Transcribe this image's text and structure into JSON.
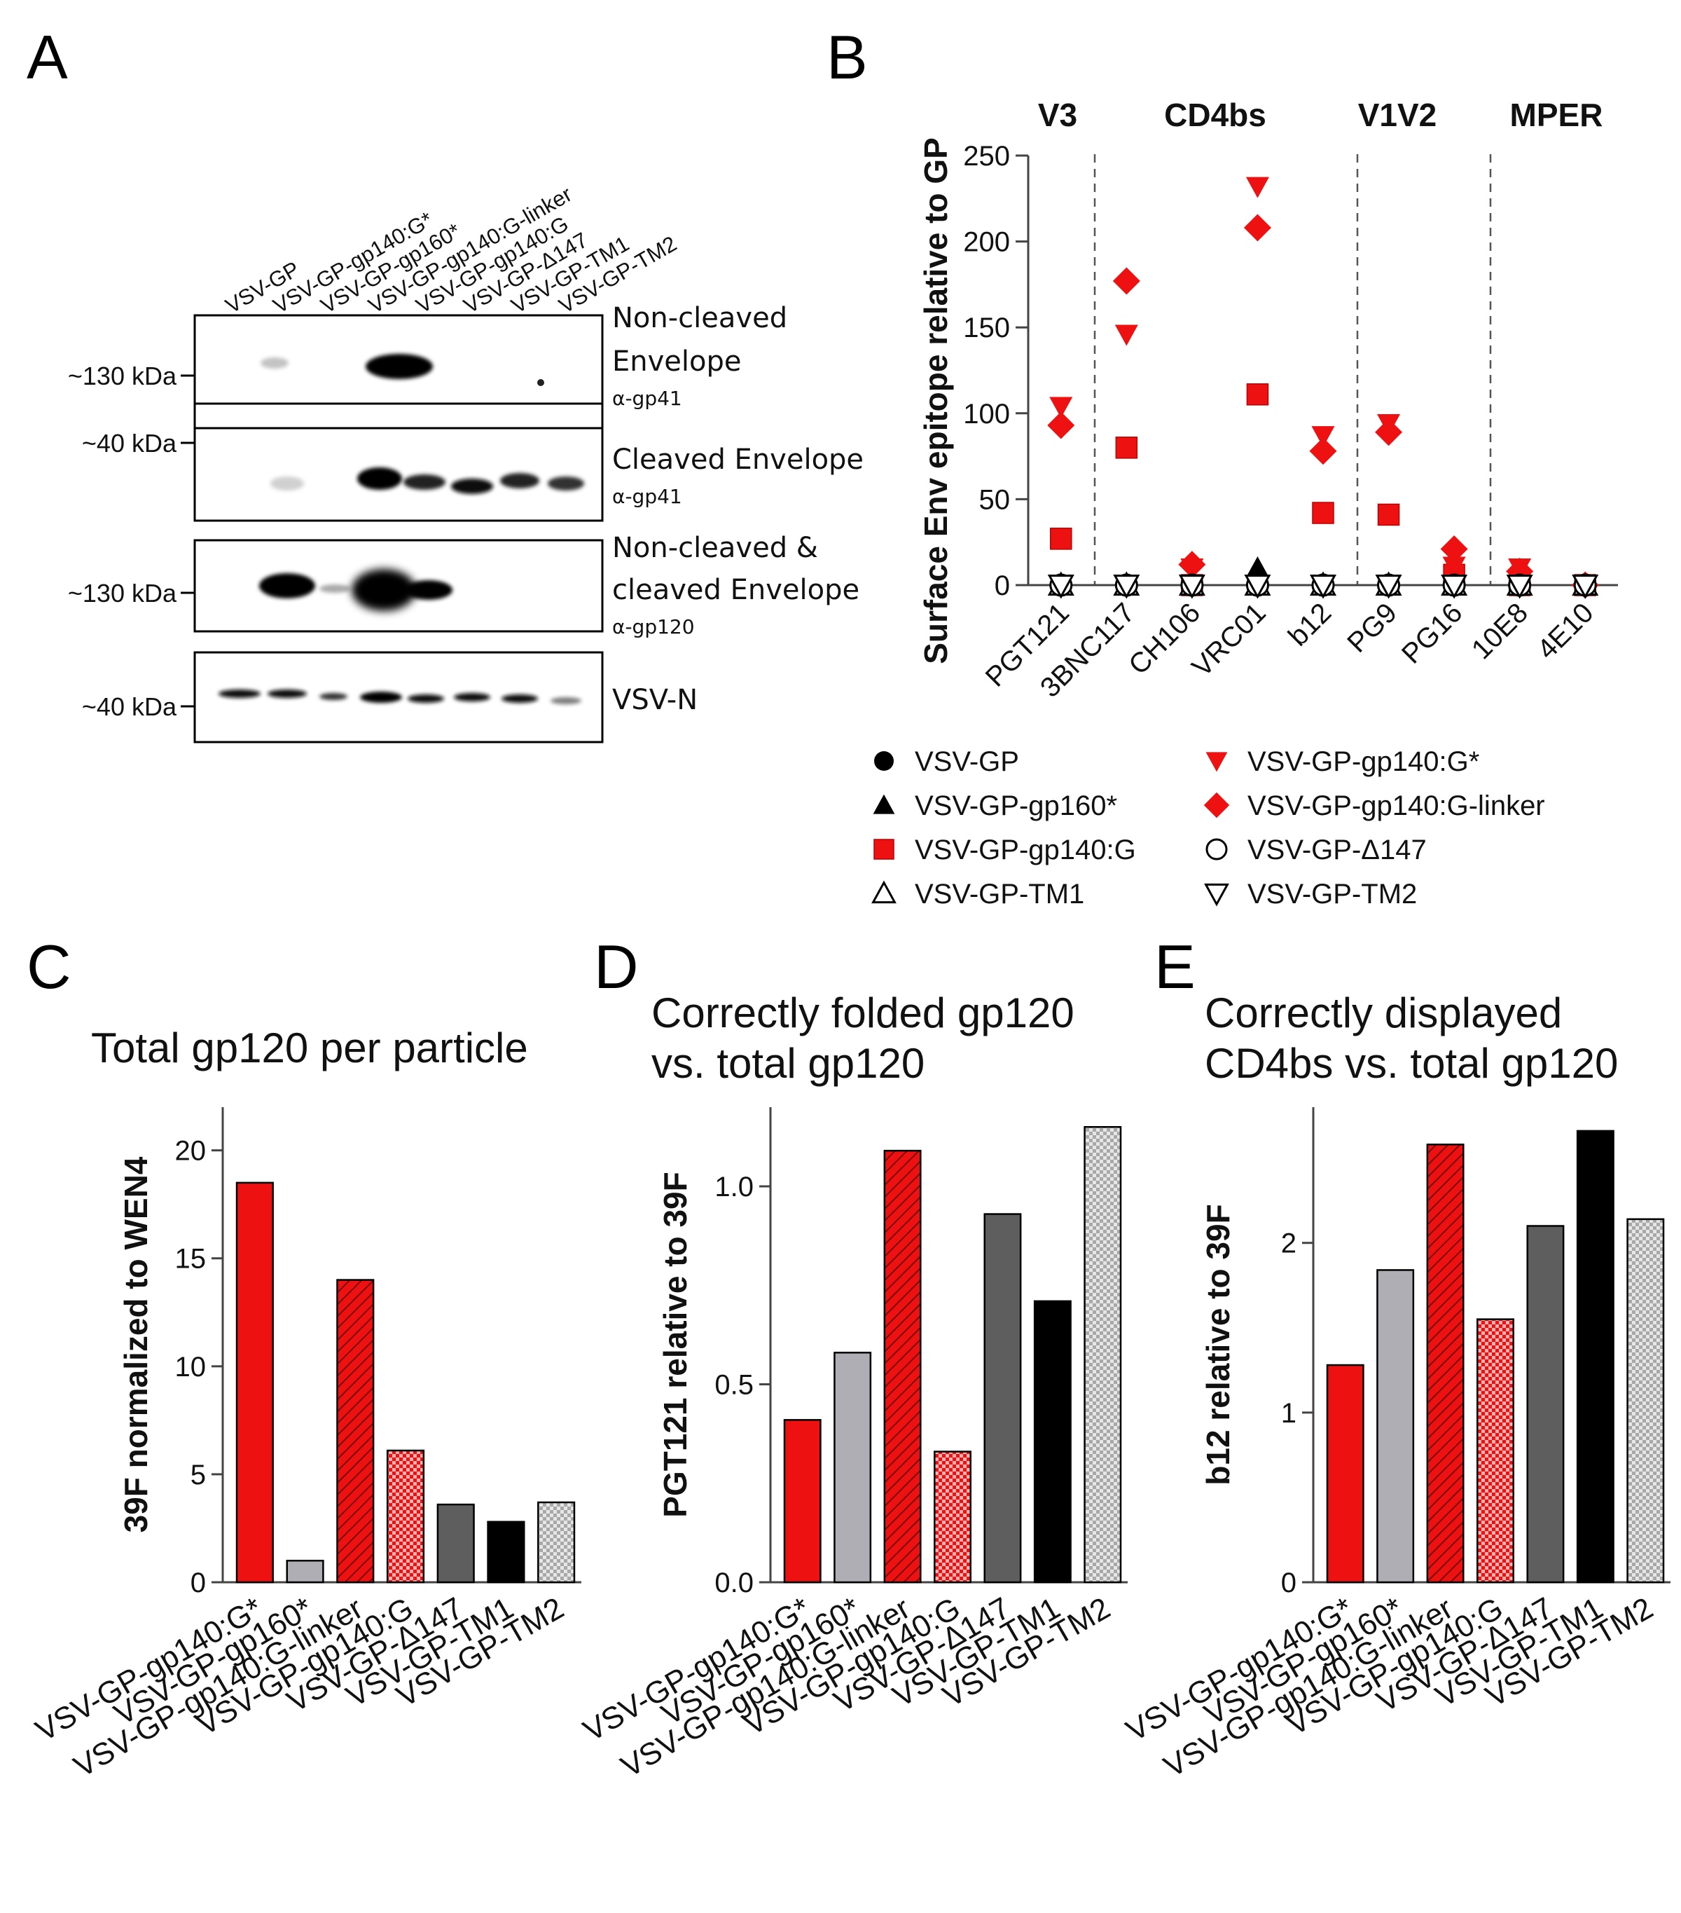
{
  "panels": {
    "a": "A",
    "b": "B",
    "c": "C",
    "d": "D",
    "e": "E"
  },
  "colors": {
    "red": "#ee1111",
    "light_gray": "#aeaeb4",
    "dark_gray": "#5e5e5e",
    "black": "#000000",
    "check_gray": "#c8c8c8"
  },
  "western_blot": {
    "lanes": [
      "VSV-GP",
      "VSV-GP-gp140:G*",
      "VSV-GP-gp160*",
      "VSV-GP-gp140:G-linker",
      "VSV-GP-gp140:G",
      "VSV-GP-Δ147",
      "VSV-GP-TM1",
      "VSV-GP-TM2"
    ],
    "blots": [
      {
        "title_lines": [
          "Non-cleaved",
          "Envelope"
        ],
        "antibody": "α-gp41",
        "marker": "~130 kDa"
      },
      {
        "title_lines": [
          "Cleaved Envelope"
        ],
        "antibody": "α-gp41",
        "marker": "~40 kDa"
      },
      {
        "title_lines": [
          "Non-cleaved &",
          "cleaved Envelope"
        ],
        "antibody": "α-gp120",
        "marker": "~130 kDa"
      },
      {
        "title_lines": [
          "VSV-N"
        ],
        "antibody": "",
        "marker": "~40 kDa"
      }
    ]
  },
  "chart_data": [
    {
      "id": "B",
      "type": "scatter",
      "ylabel": "Surface Env epitope relative to GP",
      "ylim": [
        0,
        250
      ],
      "yticks": [
        "0",
        "50",
        "100",
        "150",
        "200",
        "250"
      ],
      "categories": [
        "PGT121",
        "3BNC117",
        "CH106",
        "VRC01",
        "b12",
        "PG9",
        "PG16",
        "10E8",
        "4E10"
      ],
      "regions": [
        "V3",
        "CD4bs",
        "V1V2",
        "MPER"
      ],
      "series": [
        {
          "name": "VSV-GP",
          "marker": "circle-filled",
          "values": [
            0,
            0,
            0,
            0,
            0,
            0,
            0,
            0,
            0
          ]
        },
        {
          "name": "VSV-GP-gp160*",
          "marker": "triangle-up-filled",
          "values": [
            0,
            0,
            0,
            10,
            0,
            0,
            0,
            0,
            0
          ]
        },
        {
          "name": "VSV-GP-gp140:G",
          "marker": "square-red",
          "values": [
            27,
            80,
            0,
            111,
            42,
            41,
            6,
            0,
            0
          ]
        },
        {
          "name": "VSV-GP-TM1",
          "marker": "triangle-up-open",
          "values": [
            0,
            0,
            0,
            0,
            0,
            0,
            0,
            0,
            0
          ]
        },
        {
          "name": "VSV-GP-gp140:G*",
          "marker": "triangle-down-red",
          "values": [
            104,
            146,
            10,
            232,
            87,
            94,
            11,
            10,
            0
          ]
        },
        {
          "name": "VSV-GP-gp140:G-linker",
          "marker": "diamond-red",
          "values": [
            93,
            177,
            12,
            208,
            78,
            89,
            21,
            8,
            0
          ]
        },
        {
          "name": "VSV-GP-Δ147",
          "marker": "circle-open",
          "values": [
            0,
            0,
            0,
            0,
            0,
            0,
            0,
            0,
            0
          ]
        },
        {
          "name": "VSV-GP-TM2",
          "marker": "triangle-down-open",
          "values": [
            0,
            0,
            0,
            0,
            0,
            0,
            0,
            0,
            0
          ]
        }
      ]
    },
    {
      "id": "C",
      "type": "bar",
      "title": "Total gp120 per particle",
      "ylabel": "39F normalized to WEN4",
      "ylim": [
        0,
        22
      ],
      "yticks": [
        0,
        5,
        10,
        15,
        20
      ],
      "ytick_labels": [
        "0",
        "5",
        "10",
        "15",
        "20"
      ],
      "categories": [
        "VSV-GP-gp140:G*",
        "VSV-GP-gp160*",
        "VSV-GP-gp140:G-linker",
        "VSV-GP-gp140:G",
        "VSV-GP-Δ147",
        "VSV-GP-TM1",
        "VSV-GP-TM2"
      ],
      "values": [
        18.5,
        1.0,
        14.0,
        6.1,
        3.6,
        2.8,
        3.7
      ]
    },
    {
      "id": "D",
      "type": "bar",
      "title_lines": [
        "Correctly folded gp120",
        "vs. total gp120"
      ],
      "ylabel": "PGT121 relative to 39F",
      "ylim": [
        0,
        1.2
      ],
      "yticks": [
        0,
        0.5,
        1.0
      ],
      "ytick_labels": [
        "0.0",
        "0.5",
        "1.0"
      ],
      "categories": [
        "VSV-GP-gp140:G*",
        "VSV-GP-gp160*",
        "VSV-GP-gp140:G-linker",
        "VSV-GP-gp140:G",
        "VSV-GP-Δ147",
        "VSV-GP-TM1",
        "VSV-GP-TM2"
      ],
      "values": [
        0.41,
        0.58,
        1.09,
        0.33,
        0.93,
        0.71,
        1.15
      ]
    },
    {
      "id": "E",
      "type": "bar",
      "title_lines": [
        "Correctly displayed",
        "CD4bs vs. total gp120"
      ],
      "ylabel": "b12 relative to 39F",
      "ylim": [
        0,
        2.8
      ],
      "yticks": [
        0,
        1,
        2
      ],
      "ytick_labels": [
        "0",
        "1",
        "2"
      ],
      "categories": [
        "VSV-GP-gp140:G*",
        "VSV-GP-gp160*",
        "VSV-GP-gp140:G-linker",
        "VSV-GP-gp140:G",
        "VSV-GP-Δ147",
        "VSV-GP-TM1",
        "VSV-GP-TM2"
      ],
      "values": [
        1.28,
        1.84,
        2.58,
        1.55,
        2.1,
        2.66,
        2.14
      ]
    }
  ]
}
